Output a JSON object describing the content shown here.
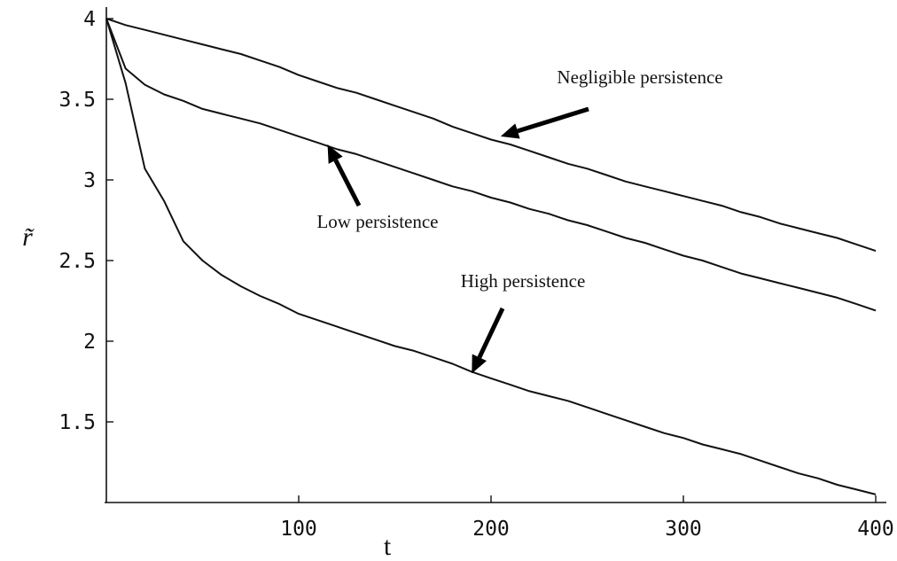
{
  "chart_data": {
    "type": "line",
    "xlabel": "t",
    "ylabel": "r̃",
    "xlim": [
      0,
      400
    ],
    "ylim": [
      1,
      4
    ],
    "xticks": [
      "100",
      "200",
      "300",
      "400"
    ],
    "yticks": [
      "1.5",
      "2",
      "2.5",
      "3",
      "3.5",
      "4"
    ],
    "series": [
      {
        "name": "Negligible persistence",
        "x": [
          0,
          10,
          20,
          30,
          40,
          50,
          60,
          70,
          80,
          90,
          100,
          110,
          120,
          130,
          140,
          150,
          160,
          170,
          180,
          190,
          200,
          210,
          220,
          230,
          240,
          250,
          260,
          270,
          280,
          290,
          300,
          310,
          320,
          330,
          340,
          350,
          360,
          370,
          380,
          390,
          400
        ],
        "y": [
          4.0,
          3.96,
          3.93,
          3.9,
          3.87,
          3.84,
          3.81,
          3.78,
          3.74,
          3.7,
          3.65,
          3.61,
          3.57,
          3.54,
          3.5,
          3.46,
          3.42,
          3.38,
          3.33,
          3.29,
          3.25,
          3.22,
          3.18,
          3.14,
          3.1,
          3.07,
          3.03,
          2.99,
          2.96,
          2.93,
          2.9,
          2.87,
          2.84,
          2.8,
          2.77,
          2.73,
          2.7,
          2.67,
          2.64,
          2.6,
          2.56
        ]
      },
      {
        "name": "Low persistence",
        "x": [
          0,
          10,
          20,
          30,
          40,
          50,
          60,
          70,
          80,
          90,
          100,
          110,
          120,
          130,
          140,
          150,
          160,
          170,
          180,
          190,
          200,
          210,
          220,
          230,
          240,
          250,
          260,
          270,
          280,
          290,
          300,
          310,
          320,
          330,
          340,
          350,
          360,
          370,
          380,
          390,
          400
        ],
        "y": [
          4.0,
          3.69,
          3.59,
          3.53,
          3.49,
          3.44,
          3.41,
          3.38,
          3.35,
          3.31,
          3.27,
          3.23,
          3.19,
          3.16,
          3.12,
          3.08,
          3.04,
          3.0,
          2.96,
          2.93,
          2.89,
          2.86,
          2.82,
          2.79,
          2.75,
          2.72,
          2.68,
          2.64,
          2.61,
          2.57,
          2.53,
          2.5,
          2.46,
          2.42,
          2.39,
          2.36,
          2.33,
          2.3,
          2.27,
          2.23,
          2.19
        ]
      },
      {
        "name": "High persistence",
        "x": [
          0,
          10,
          20,
          30,
          40,
          50,
          60,
          70,
          80,
          90,
          100,
          110,
          120,
          130,
          140,
          150,
          160,
          170,
          180,
          190,
          200,
          210,
          220,
          230,
          240,
          250,
          260,
          270,
          280,
          290,
          300,
          310,
          320,
          330,
          340,
          350,
          360,
          370,
          380,
          390,
          400
        ],
        "y": [
          4.0,
          3.6,
          3.07,
          2.87,
          2.62,
          2.5,
          2.41,
          2.34,
          2.28,
          2.23,
          2.17,
          2.13,
          2.09,
          2.05,
          2.01,
          1.97,
          1.94,
          1.9,
          1.86,
          1.81,
          1.77,
          1.73,
          1.69,
          1.66,
          1.63,
          1.59,
          1.55,
          1.51,
          1.47,
          1.43,
          1.4,
          1.36,
          1.33,
          1.3,
          1.26,
          1.22,
          1.18,
          1.15,
          1.11,
          1.08,
          1.05
        ]
      }
    ],
    "annotations": [
      {
        "text": "Negligible persistence",
        "arrow_to": [
          205,
          3.27
        ]
      },
      {
        "text": "Low persistence",
        "arrow_to": [
          115,
          3.22
        ]
      },
      {
        "text": "High persistence",
        "arrow_to": [
          190,
          1.8
        ]
      }
    ],
    "grid": false,
    "legend": "none"
  }
}
